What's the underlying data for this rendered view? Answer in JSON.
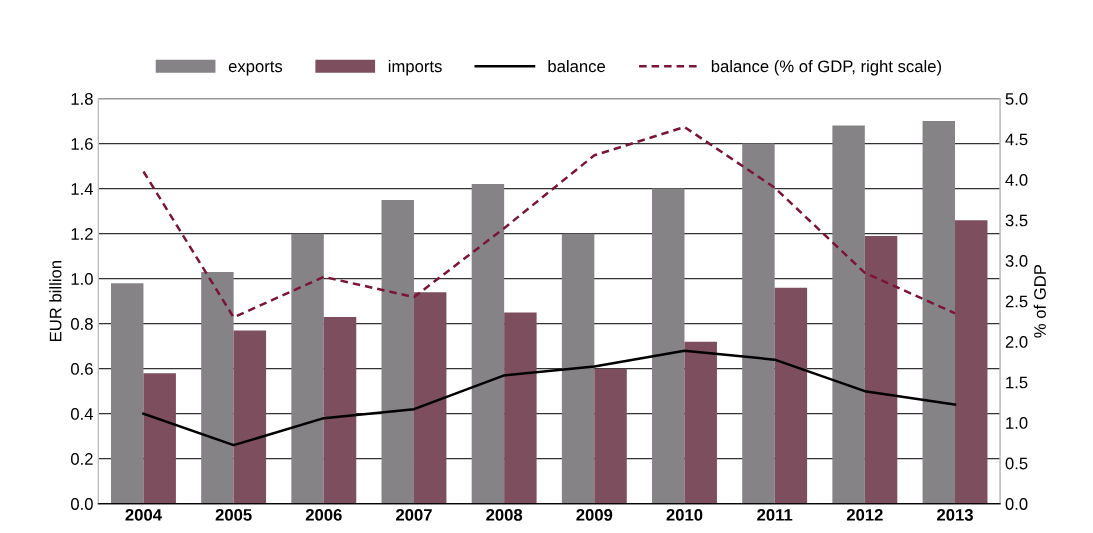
{
  "chart_data": {
    "type": "bar",
    "categories": [
      "2004",
      "2005",
      "2006",
      "2007",
      "2008",
      "2009",
      "2010",
      "2011",
      "2012",
      "2013"
    ],
    "ylabel": "EUR billion",
    "y2label": "% of GDP",
    "series": [
      {
        "name": "exports",
        "color": "#858386",
        "values": [
          0.98,
          1.03,
          1.2,
          1.35,
          1.42,
          1.2,
          1.4,
          1.6,
          1.68,
          1.7
        ]
      },
      {
        "name": "imports",
        "color": "#7d4f5e",
        "values": [
          0.58,
          0.77,
          0.83,
          0.94,
          0.85,
          0.6,
          0.72,
          0.96,
          1.19,
          1.26
        ]
      },
      {
        "name": "balance",
        "type": "line",
        "color": "#000000",
        "line_style": "solid",
        "values": [
          0.4,
          0.26,
          0.38,
          0.42,
          0.57,
          0.61,
          0.68,
          0.64,
          0.5,
          0.44
        ]
      },
      {
        "name": "balance (% of GDP, right scale)",
        "type": "line",
        "axis": "y2",
        "color": "#7a1538",
        "line_style": "dashed",
        "values": [
          4.1,
          2.3,
          2.8,
          2.55,
          3.4,
          4.3,
          4.65,
          3.9,
          2.85,
          2.35
        ]
      }
    ],
    "ylim": [
      0,
      1.8
    ],
    "yticks": [
      {
        "value": 0,
        "label": "0.0"
      },
      {
        "value": 0.2,
        "label": "0.2"
      },
      {
        "value": 0.4,
        "label": "0.4"
      },
      {
        "value": 0.6,
        "label": "0.6"
      },
      {
        "value": 0.8,
        "label": "0.8"
      },
      {
        "value": 1.0,
        "label": "1.0"
      },
      {
        "value": 1.2,
        "label": "1.2"
      },
      {
        "value": 1.4,
        "label": "1.4"
      },
      {
        "value": 1.6,
        "label": "1.6"
      },
      {
        "value": 1.8,
        "label": "1.8"
      }
    ],
    "y2lim": [
      0,
      5
    ],
    "y2ticks": [
      {
        "value": 0,
        "label": "0.0"
      },
      {
        "value": 0.5,
        "label": "0.5"
      },
      {
        "value": 1,
        "label": "1.0"
      },
      {
        "value": 1.5,
        "label": "1.5"
      },
      {
        "value": 2,
        "label": "2.0"
      },
      {
        "value": 2.5,
        "label": "2.5"
      },
      {
        "value": 3,
        "label": "3.0"
      },
      {
        "value": 3.5,
        "label": "3.5"
      },
      {
        "value": 4,
        "label": "4.0"
      },
      {
        "value": 4.5,
        "label": "4.5"
      },
      {
        "value": 5,
        "label": "5.0"
      }
    ],
    "grid": "y",
    "legend": "top"
  }
}
